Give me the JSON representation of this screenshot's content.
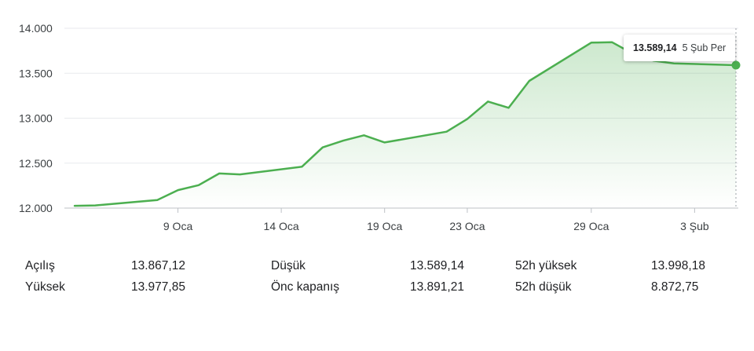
{
  "chart_data": {
    "type": "area",
    "y_ticks": [
      "14.000",
      "13.500",
      "13.000",
      "12.500",
      "12.000"
    ],
    "y_tick_values": [
      14000,
      13500,
      13000,
      12500,
      12000
    ],
    "ylim": [
      12000,
      14000
    ],
    "x_ticks": [
      "9 Oca",
      "14 Oca",
      "19 Oca",
      "23 Oca",
      "29 Oca",
      "3 Şub"
    ],
    "x_tick_dates": [
      "2024-01-09",
      "2024-01-14",
      "2024-01-19",
      "2024-01-23",
      "2024-01-29",
      "2024-02-03"
    ],
    "xlim": [
      "2024-01-04",
      "2024-02-05"
    ],
    "x": [
      "2024-01-04",
      "2024-01-05",
      "2024-01-08",
      "2024-01-09",
      "2024-01-10",
      "2024-01-11",
      "2024-01-12",
      "2024-01-15",
      "2024-01-16",
      "2024-01-17",
      "2024-01-18",
      "2024-01-19",
      "2024-01-22",
      "2024-01-23",
      "2024-01-24",
      "2024-01-25",
      "2024-01-26",
      "2024-01-29",
      "2024-01-30",
      "2024-01-31",
      "2024-02-01",
      "2024-02-02",
      "2024-02-05"
    ],
    "series": [
      {
        "values": [
          12025,
          12030,
          12090,
          12200,
          12255,
          12385,
          12375,
          12460,
          12675,
          12750,
          12810,
          12730,
          12850,
          12990,
          13185,
          13115,
          13415,
          13840,
          13845,
          13720,
          13640,
          13610,
          13589.14
        ],
        "color": "#4caf50"
      }
    ],
    "grid": true,
    "tooltip": {
      "value": "13.589,14",
      "date": "5 Şub Per"
    }
  },
  "stats": {
    "rows": [
      [
        {
          "label": "Açılış",
          "value": "13.867,12"
        },
        {
          "label": "Düşük",
          "value": "13.589,14"
        },
        {
          "label": "52h yüksek",
          "value": "13.998,18"
        }
      ],
      [
        {
          "label": "Yüksek",
          "value": "13.977,85"
        },
        {
          "label": "Önc kapanış",
          "value": "13.891,21"
        },
        {
          "label": "52h düşük",
          "value": "8.872,75"
        }
      ]
    ]
  }
}
